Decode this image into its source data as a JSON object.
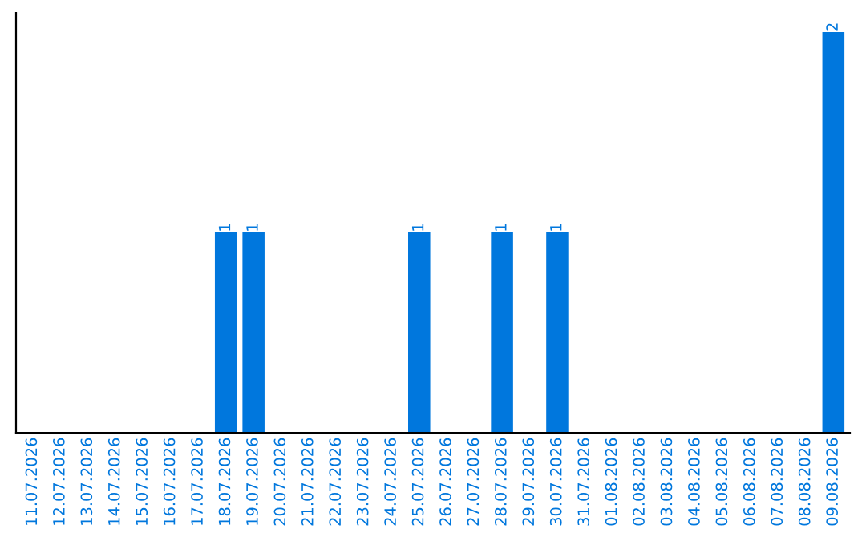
{
  "chart_data": {
    "type": "bar",
    "categories": [
      "11.07.2026",
      "12.07.2026",
      "13.07.2026",
      "14.07.2026",
      "15.07.2026",
      "16.07.2026",
      "17.07.2026",
      "18.07.2026",
      "19.07.2026",
      "20.07.2026",
      "21.07.2026",
      "22.07.2026",
      "23.07.2026",
      "24.07.2026",
      "25.07.2026",
      "26.07.2026",
      "27.07.2026",
      "28.07.2026",
      "29.07.2026",
      "30.07.2026",
      "31.07.2026",
      "01.08.2026",
      "02.08.2026",
      "03.08.2026",
      "04.08.2026",
      "05.08.2026",
      "06.08.2026",
      "07.08.2026",
      "08.08.2026",
      "09.08.2026"
    ],
    "values": [
      0,
      0,
      0,
      0,
      0,
      0,
      0,
      1,
      1,
      0,
      0,
      0,
      0,
      0,
      1,
      0,
      0,
      1,
      0,
      1,
      0,
      0,
      0,
      0,
      0,
      0,
      0,
      0,
      0,
      2
    ],
    "value_labels": [
      null,
      null,
      null,
      null,
      null,
      null,
      null,
      "1",
      "1",
      null,
      null,
      null,
      null,
      null,
      "1",
      null,
      null,
      "1",
      null,
      "1",
      null,
      null,
      null,
      null,
      null,
      null,
      null,
      null,
      null,
      "2"
    ],
    "color": "#0077dd",
    "grid": false,
    "legend": false
  }
}
